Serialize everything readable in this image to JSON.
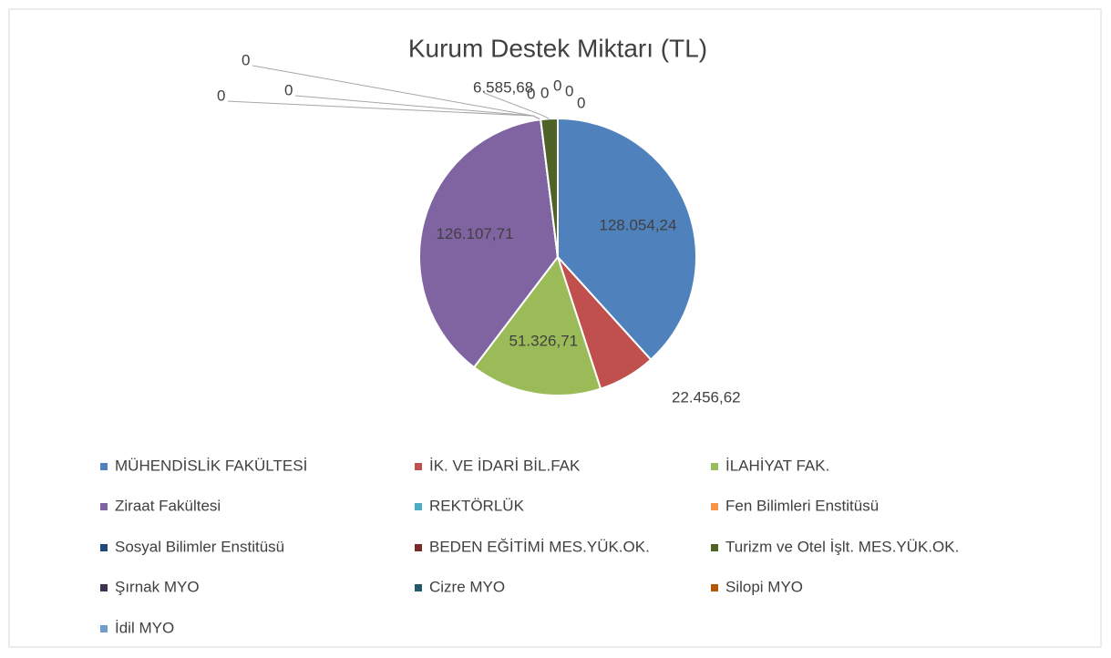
{
  "chart_data": {
    "type": "pie",
    "title": "Kurum Destek Miktarı (TL)",
    "categories": [
      "MÜHENDİSLİK FAKÜLTESİ",
      "İK. VE İDARİ BİL.FAK",
      "İLAHİYAT FAK.",
      "Ziraat Fakültesi",
      "REKTÖRLÜK",
      "Fen Bilimleri Enstitüsü",
      "Sosyal Bilimler Enstitüsü",
      "BEDEN EĞİTİMİ MES.YÜK.OK.",
      "Turizm ve Otel İşlt. MES.YÜK.OK.",
      "Şırnak MYO",
      "Cizre MYO",
      "Silopi MYO",
      "İdil MYO"
    ],
    "values": [
      128054.24,
      22456.62,
      51326.71,
      126107.71,
      0,
      0,
      0,
      0,
      6585.68,
      0,
      0,
      0,
      0
    ],
    "value_labels": [
      "128.054,24",
      "22.456,62",
      "51.326,71",
      "126.107,71",
      "0",
      "0",
      "0",
      "0",
      "6.585,68",
      "0",
      "0",
      "0",
      "0"
    ],
    "colors": [
      "#4f81bd",
      "#c0504d",
      "#9bbb59",
      "#8064a2",
      "#4bacc6",
      "#f79646",
      "#1f497d",
      "#772c2a",
      "#4f6228",
      "#3f3151",
      "#215968",
      "#b65708",
      "#729aca"
    ],
    "legend": "bottom"
  }
}
